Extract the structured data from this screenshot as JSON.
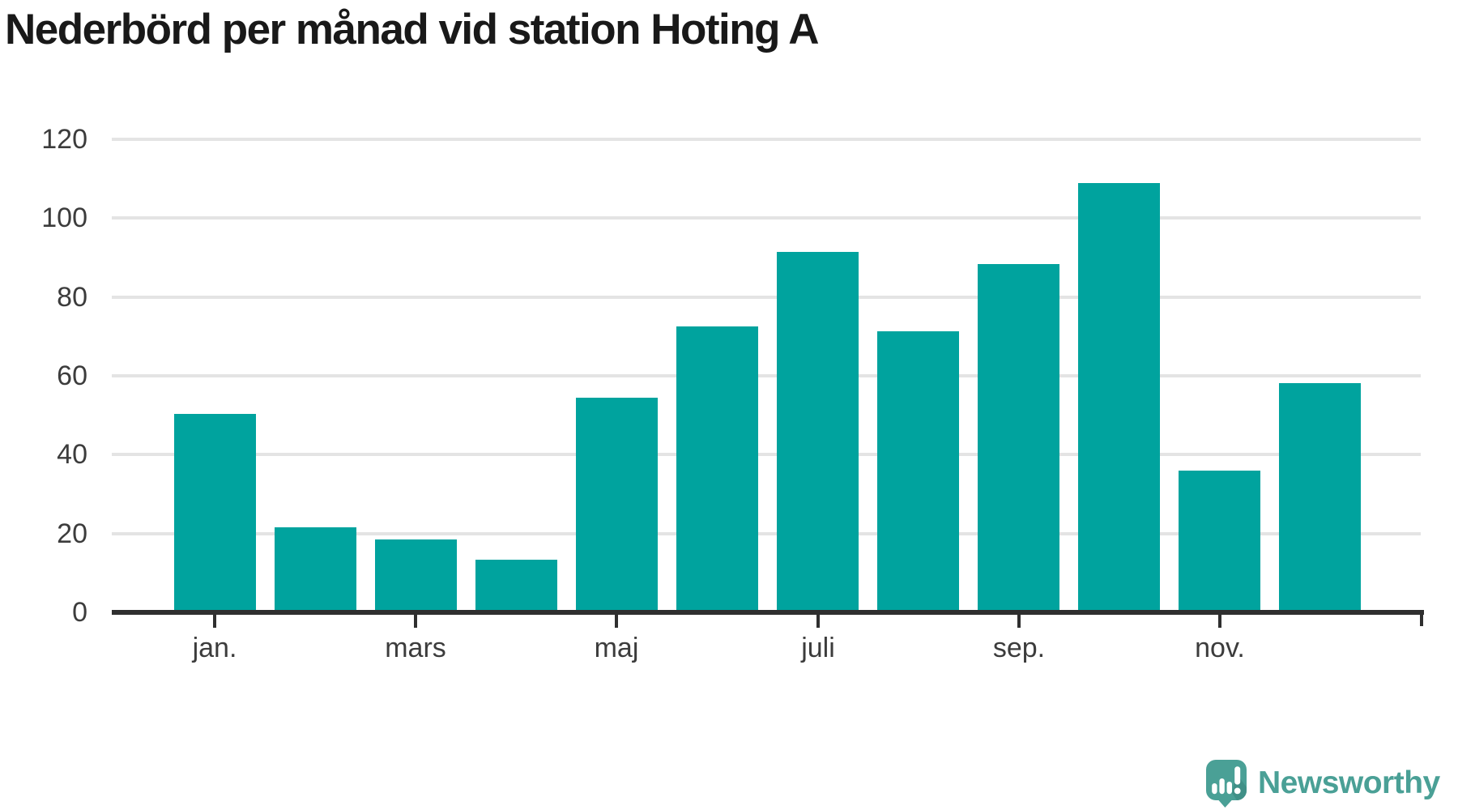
{
  "header": {
    "title": "Nederbörd per månad vid station Hoting A"
  },
  "chart_data": {
    "type": "bar",
    "title": "Nederbörd per månad vid station Hoting A",
    "x": [
      1,
      2,
      3,
      4,
      5,
      6,
      7,
      8,
      9,
      10,
      11,
      12
    ],
    "values": [
      50.4,
      21.6,
      18.4,
      13.4,
      54.5,
      72.6,
      91.5,
      71.3,
      88.3,
      108.9,
      36.0,
      58.2
    ],
    "xlabel": "",
    "ylabel": "",
    "ylim": [
      0,
      120
    ],
    "y_ticks": [
      0,
      20,
      40,
      60,
      80,
      100,
      120
    ],
    "x_tick_labels": [
      "jan.",
      "mars",
      "maj",
      "juli",
      "sep.",
      "nov."
    ],
    "x_tick_indices": [
      0,
      2,
      4,
      6,
      8,
      10
    ],
    "grid": "horizontal",
    "legend": "none",
    "bar_color": "#00a39e"
  },
  "branding": {
    "logo_text": "Newsworthy",
    "logo_icon": "newsworthy-speech-bubble-barchart-icon",
    "logo_color": "#4aa096"
  },
  "colors": {
    "background": "#ffffff",
    "bar": "#00a39e",
    "gridline": "#e4e4e4",
    "axis": "#2f2f2f",
    "tick_text": "#3c3c3c",
    "title_text": "#191919",
    "logo": "#4aa096",
    "logo_shadow": "#3e8d85"
  }
}
